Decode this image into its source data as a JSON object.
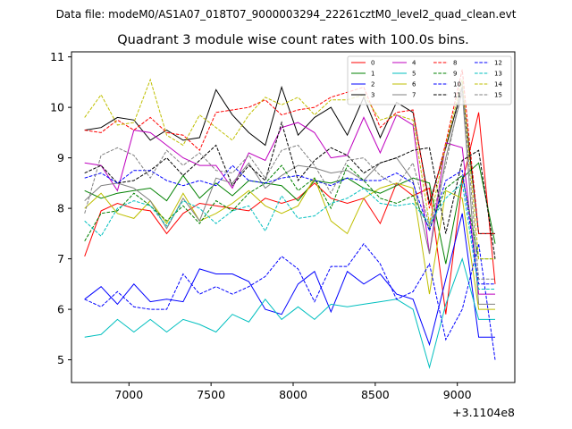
{
  "chart_data": {
    "type": "line",
    "suptitle": "Data file: modeM0/AS1A07_018T07_9000003294_22261cztM0_level2_quad_clean.evt",
    "title": "Quadrant 3 module wise count rates with 100.0s bins.",
    "xlabel": "",
    "ylabel": "",
    "x_offset_label": "+3.1104e8",
    "xlim": [
      6650,
      9350
    ],
    "ylim": [
      4.55,
      11.1
    ],
    "xticks": [
      7000,
      7500,
      8000,
      8500,
      9000
    ],
    "xtick_labels": [
      "7000",
      "7500",
      "8000",
      "8500",
      "9000"
    ],
    "yticks": [
      5,
      6,
      7,
      8,
      9,
      10,
      11
    ],
    "ytick_labels": [
      "5",
      "6",
      "7",
      "8",
      "9",
      "10",
      "11"
    ],
    "legend_position": "top-right",
    "x": [
      6730,
      6830,
      6930,
      7030,
      7130,
      7230,
      7330,
      7430,
      7530,
      7630,
      7730,
      7830,
      7930,
      8030,
      8130,
      8230,
      8330,
      8430,
      8530,
      8630,
      8730,
      8830,
      8930,
      9030,
      9130,
      9230
    ],
    "series": [
      {
        "name": "0",
        "color": "#ff0000",
        "dash": "solid",
        "values": [
          7.05,
          7.95,
          8.1,
          8.0,
          7.95,
          7.5,
          7.9,
          8.1,
          8.05,
          8.0,
          7.95,
          8.2,
          8.1,
          8.2,
          8.5,
          8.2,
          8.1,
          8.2,
          7.7,
          8.5,
          8.25,
          8.4,
          5.9,
          8.5,
          9.9,
          6.5
        ]
      },
      {
        "name": "1",
        "color": "#008000",
        "dash": "solid",
        "values": [
          8.35,
          8.2,
          8.3,
          8.35,
          8.4,
          8.15,
          8.65,
          8.2,
          8.5,
          8.25,
          8.55,
          8.5,
          8.45,
          8.15,
          8.55,
          8.5,
          8.6,
          8.4,
          8.3,
          8.45,
          8.6,
          8.5,
          6.9,
          8.6,
          8.9,
          7.3
        ]
      },
      {
        "name": "2",
        "color": "#0000ff",
        "dash": "solid",
        "values": [
          6.2,
          6.45,
          6.1,
          6.5,
          6.15,
          6.2,
          6.15,
          6.8,
          6.7,
          6.7,
          6.55,
          6.0,
          5.9,
          6.5,
          6.75,
          5.95,
          6.75,
          6.5,
          6.7,
          6.3,
          6.2,
          5.3,
          6.6,
          7.9,
          5.45,
          5.45
        ]
      },
      {
        "name": "3",
        "color": "#000000",
        "dash": "solid",
        "values": [
          9.55,
          9.6,
          9.8,
          9.75,
          9.35,
          9.55,
          9.35,
          9.4,
          10.35,
          9.85,
          9.5,
          9.25,
          10.4,
          9.45,
          9.8,
          10.0,
          9.45,
          10.2,
          9.4,
          10.1,
          9.9,
          8.1,
          9.2,
          10.4,
          7.5,
          7.5
        ]
      },
      {
        "name": "4",
        "color": "#bf00bf",
        "dash": "solid",
        "values": [
          8.9,
          8.85,
          8.35,
          9.55,
          9.5,
          9.25,
          9.0,
          8.85,
          8.85,
          8.4,
          9.1,
          8.95,
          9.6,
          9.7,
          9.5,
          9.0,
          9.05,
          9.8,
          9.1,
          9.85,
          9.65,
          7.1,
          9.3,
          9.2,
          6.3,
          6.3
        ]
      },
      {
        "name": "5",
        "color": "#00bfbf",
        "dash": "solid",
        "values": [
          5.45,
          5.5,
          5.8,
          5.55,
          5.8,
          5.55,
          5.8,
          5.7,
          5.55,
          5.9,
          5.75,
          6.2,
          5.8,
          6.05,
          5.8,
          6.1,
          6.05,
          6.1,
          6.15,
          6.2,
          6.0,
          4.85,
          6.1,
          7.0,
          5.8,
          5.8
        ]
      },
      {
        "name": "6",
        "color": "#bfbf00",
        "dash": "solid",
        "values": [
          8.0,
          8.3,
          7.9,
          7.8,
          8.15,
          7.7,
          8.3,
          7.75,
          7.9,
          8.1,
          8.35,
          8.05,
          7.9,
          8.05,
          8.6,
          7.75,
          7.5,
          8.2,
          8.4,
          8.5,
          8.4,
          6.3,
          8.35,
          8.2,
          6.0,
          6.0
        ]
      },
      {
        "name": "7",
        "color": "#808080",
        "dash": "solid",
        "values": [
          8.15,
          8.45,
          8.5,
          8.4,
          8.15,
          7.6,
          8.2,
          7.75,
          8.6,
          8.5,
          8.9,
          8.4,
          8.65,
          8.85,
          8.8,
          8.7,
          8.75,
          8.55,
          8.9,
          9.0,
          8.55,
          7.1,
          9.0,
          10.3,
          6.1,
          6.1
        ]
      },
      {
        "name": "8",
        "color": "#ff0000",
        "dash": "dashed",
        "values": [
          9.55,
          9.5,
          9.75,
          9.55,
          9.8,
          9.5,
          9.45,
          9.15,
          9.9,
          9.95,
          10.0,
          10.15,
          9.85,
          9.95,
          10.0,
          10.2,
          10.3,
          10.4,
          9.6,
          9.9,
          9.95,
          8.0,
          9.3,
          10.75,
          7.5,
          7.5
        ]
      },
      {
        "name": "9",
        "color": "#008000",
        "dash": "dashed",
        "values": [
          7.35,
          7.9,
          7.95,
          8.3,
          8.05,
          7.75,
          8.05,
          7.7,
          8.15,
          7.95,
          8.3,
          8.5,
          8.85,
          8.35,
          8.6,
          8.0,
          8.85,
          8.55,
          8.2,
          8.1,
          8.25,
          7.6,
          8.4,
          8.65,
          7.0,
          7.0
        ]
      },
      {
        "name": "10",
        "color": "#0000ff",
        "dash": "dashed",
        "values": [
          6.2,
          6.05,
          6.35,
          6.05,
          6.0,
          6.0,
          6.7,
          6.3,
          6.45,
          6.3,
          6.45,
          6.65,
          7.05,
          6.8,
          6.15,
          6.85,
          6.85,
          7.3,
          6.9,
          6.2,
          6.35,
          6.9,
          5.4,
          6.0,
          7.3,
          5.0
        ]
      },
      {
        "name": "11",
        "color": "#000000",
        "dash": "dashed",
        "values": [
          8.7,
          8.85,
          8.5,
          8.55,
          8.75,
          9.0,
          8.65,
          8.95,
          9.25,
          8.45,
          8.85,
          8.55,
          9.7,
          8.55,
          8.95,
          9.2,
          9.05,
          8.7,
          8.9,
          9.0,
          9.15,
          9.2,
          7.5,
          8.95,
          9.15,
          7.0
        ]
      },
      {
        "name": "12",
        "color": "#0000ff",
        "dash": "dashed",
        "values": [
          8.6,
          8.7,
          8.5,
          8.75,
          8.75,
          8.55,
          8.45,
          8.55,
          8.45,
          8.85,
          8.55,
          8.5,
          8.6,
          8.65,
          8.55,
          8.45,
          8.6,
          8.55,
          8.55,
          8.7,
          8.5,
          7.55,
          8.55,
          8.75,
          6.5,
          6.5
        ]
      },
      {
        "name": "13",
        "color": "#00bfbf",
        "dash": "dashed",
        "values": [
          7.75,
          7.45,
          8.0,
          8.15,
          8.05,
          7.65,
          8.15,
          8.0,
          7.7,
          7.95,
          8.05,
          7.55,
          8.25,
          7.8,
          7.85,
          8.1,
          8.2,
          8.4,
          8.1,
          8.05,
          8.1,
          7.7,
          8.2,
          8.5,
          6.4,
          6.4
        ]
      },
      {
        "name": "14",
        "color": "#bfbf00",
        "dash": "dashed",
        "values": [
          9.8,
          10.25,
          9.65,
          9.7,
          10.55,
          9.45,
          9.25,
          9.85,
          9.6,
          9.35,
          9.85,
          10.2,
          10.05,
          10.2,
          9.85,
          10.15,
          10.15,
          10.25,
          9.75,
          9.85,
          9.75,
          7.7,
          9.25,
          10.55,
          7.0,
          7.0
        ]
      },
      {
        "name": "15",
        "color": "#808080",
        "dash": "dashed",
        "values": [
          7.9,
          9.05,
          9.2,
          9.05,
          8.6,
          9.15,
          8.85,
          9.1,
          8.75,
          8.7,
          9.05,
          8.6,
          9.15,
          9.25,
          8.85,
          8.3,
          8.95,
          9.0,
          8.65,
          8.45,
          8.9,
          7.65,
          8.85,
          10.45,
          6.6,
          6.6
        ]
      }
    ]
  }
}
